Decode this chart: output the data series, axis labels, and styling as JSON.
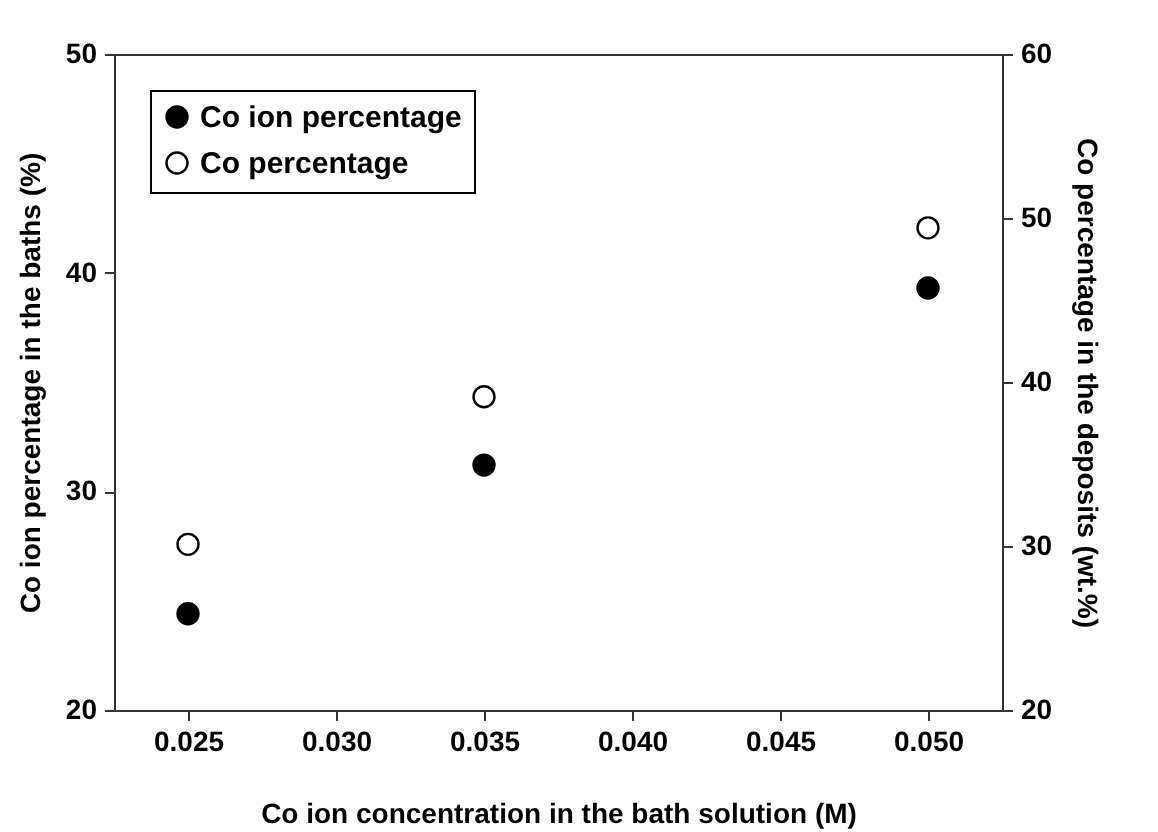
{
  "chart_data": {
    "type": "scatter",
    "xlabel": "Co ion concentration in the bath solution (M)",
    "ylabel": "Co ion percentage in the baths (%)",
    "y2label": "Co percentage in the deposits (wt.%)",
    "x": [
      0.025,
      0.035,
      0.05
    ],
    "series": [
      {
        "name": "Co ion percentage",
        "color": "#000000",
        "values": [
          24.4,
          31.2,
          39.3
        ]
      },
      {
        "name": "Co percentage",
        "color": "#ffffff",
        "values": [
          30.1,
          39.1,
          49.4
        ],
        "axis": "y2"
      }
    ],
    "xlim": [
      0.0225,
      0.0525
    ],
    "xticks": [
      0.025,
      {
        "value": 0.03,
        "label": "0.030"
      },
      0.035,
      {
        "value": 0.04,
        "label": "0.040"
      },
      0.045,
      {
        "value": 0.05,
        "label": "0.050"
      }
    ],
    "ylim": [
      20,
      50
    ],
    "yticks": [
      20,
      30,
      40,
      50
    ],
    "y2lim": [
      20,
      60
    ],
    "y2ticks": [
      20,
      30,
      40,
      50,
      60
    ],
    "legend": "top left",
    "marker": "circle"
  }
}
